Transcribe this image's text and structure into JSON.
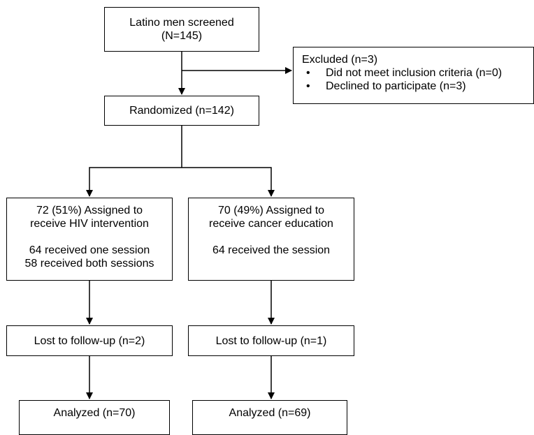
{
  "screened": {
    "line1": "Latino men screened",
    "line2": "(N=145)"
  },
  "excluded": {
    "title": "Excluded (n=3)",
    "bullet": "•",
    "items": [
      "Did not meet inclusion criteria (n=0)",
      "Declined to participate (n=3)"
    ]
  },
  "randomized": {
    "label": "Randomized (n=142)"
  },
  "arms": [
    {
      "assign_line1": "72 (51%) Assigned to",
      "assign_line2": "receive HIV intervention",
      "received_line1": "64 received one session",
      "received_line2": "58 received both sessions",
      "lost": "Lost to follow-up (n=2)",
      "analyzed": "Analyzed (n=70)"
    },
    {
      "assign_line1": "70 (49%) Assigned to",
      "assign_line2": "receive cancer education",
      "received_line1": "64 received the session",
      "received_line2": "",
      "lost": "Lost to follow-up (n=1)",
      "analyzed": "Analyzed (n=69)"
    }
  ]
}
